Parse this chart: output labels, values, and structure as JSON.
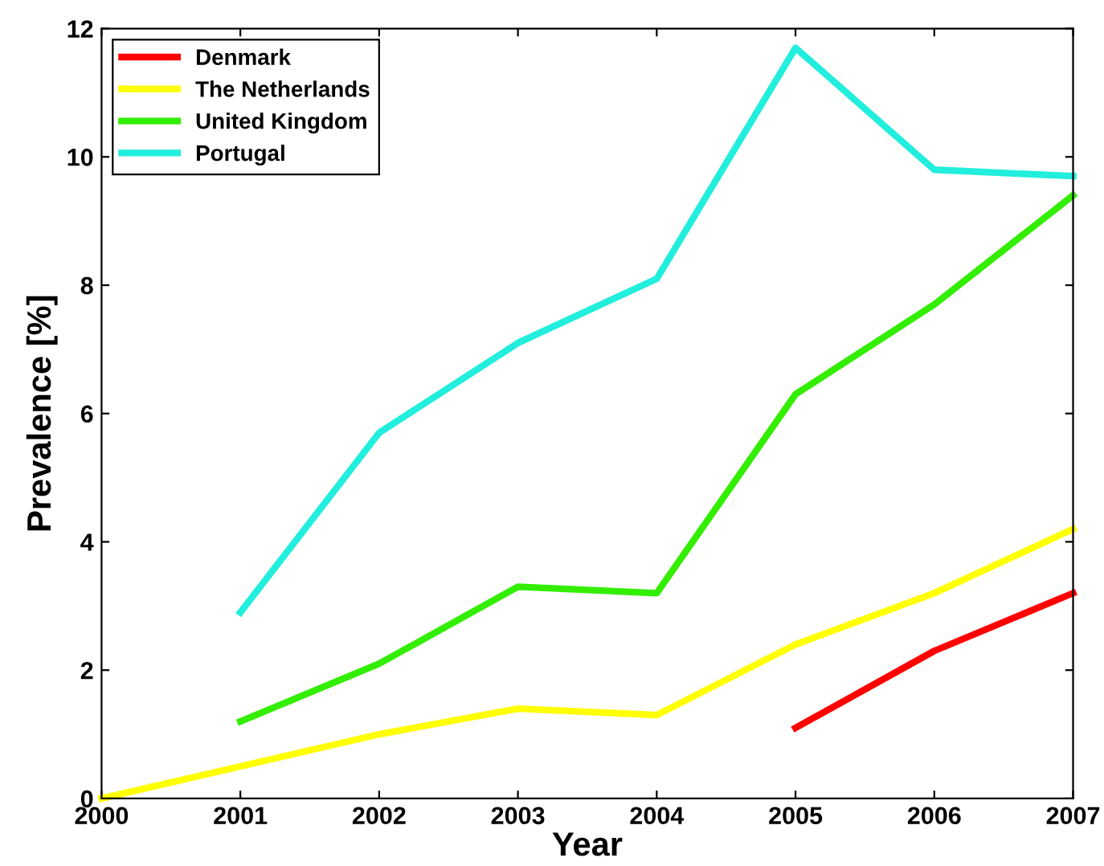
{
  "chart_data": {
    "type": "line",
    "xlabel": "Year",
    "ylabel": "Prevalence [%]",
    "x": [
      2000,
      2001,
      2002,
      2003,
      2004,
      2005,
      2006,
      2007
    ],
    "series": [
      {
        "name": "Denmark",
        "color": "#ff0000",
        "values": [
          null,
          null,
          null,
          null,
          null,
          1.1,
          2.3,
          3.2
        ]
      },
      {
        "name": "The Netherlands",
        "color": "#ffff00",
        "values": [
          0.0,
          0.5,
          1.0,
          1.4,
          1.3,
          2.4,
          3.2,
          4.2
        ]
      },
      {
        "name": "United Kingdom",
        "color": "#33ee00",
        "values": [
          null,
          1.2,
          2.1,
          3.3,
          3.2,
          6.3,
          7.7,
          9.4
        ]
      },
      {
        "name": "Portugal",
        "color": "#22eedd",
        "values": [
          null,
          2.9,
          5.7,
          7.1,
          8.1,
          11.7,
          9.8,
          9.7
        ]
      }
    ],
    "xlim": [
      2000,
      2007
    ],
    "xticks": [
      2000,
      2001,
      2002,
      2003,
      2004,
      2005,
      2006,
      2007
    ],
    "ylim": [
      0,
      12
    ],
    "yticks": [
      0,
      2,
      4,
      6,
      8,
      10,
      12
    ],
    "grid": false,
    "legend": "top left",
    "marker": "none",
    "line_style": "solid"
  }
}
